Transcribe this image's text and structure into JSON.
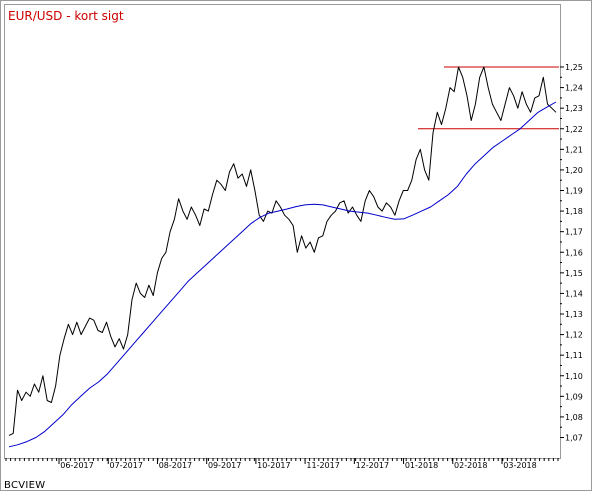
{
  "chart_data": {
    "type": "line",
    "title": "EUR/USD - kort sigt",
    "x_labels": [
      "06-2017",
      "07-2017",
      "08-2017",
      "09-2017",
      "10-2017",
      "11-2017",
      "12-2017",
      "01-2018",
      "02-2018",
      "03-2018"
    ],
    "y_ticks": [
      "1,07",
      "1,08",
      "1,09",
      "1,10",
      "1,11",
      "1,12",
      "1,13",
      "1,14",
      "1,15",
      "1,16",
      "1,17",
      "1,18",
      "1,19",
      "1,20",
      "1,21",
      "1,22",
      "1,23",
      "1,24",
      "1,25"
    ],
    "ylim": [
      1.064,
      1.255
    ],
    "grid": false,
    "colors": {
      "price": "#000000",
      "moving_average": "#0000cc",
      "levels": "#cc0000",
      "title": "#cc0000"
    },
    "series": [
      {
        "values": [
          1.071,
          1.072,
          1.093,
          1.088,
          1.092,
          1.09,
          1.096,
          1.092,
          1.1,
          1.088,
          1.087,
          1.095,
          1.11,
          1.118,
          1.125,
          1.12,
          1.126,
          1.12,
          1.124,
          1.128,
          1.127,
          1.122,
          1.121,
          1.126,
          1.119,
          1.114,
          1.118,
          1.113,
          1.12,
          1.137,
          1.145,
          1.14,
          1.138,
          1.144,
          1.139,
          1.15,
          1.157,
          1.16,
          1.17,
          1.176,
          1.186,
          1.18,
          1.176,
          1.182,
          1.178,
          1.173,
          1.181,
          1.18,
          1.188,
          1.195,
          1.193,
          1.19,
          1.199,
          1.203,
          1.196,
          1.198,
          1.192,
          1.2,
          1.19,
          1.178,
          1.175,
          1.18,
          1.179,
          1.185,
          1.182,
          1.178,
          1.176,
          1.173,
          1.16,
          1.168,
          1.162,
          1.165,
          1.16,
          1.167,
          1.168,
          1.175,
          1.178,
          1.18,
          1.184,
          1.185,
          1.179,
          1.182,
          1.178,
          1.175,
          1.185,
          1.19,
          1.187,
          1.182,
          1.18,
          1.184,
          1.182,
          1.178,
          1.185,
          1.19,
          1.19,
          1.195,
          1.205,
          1.21,
          1.2,
          1.195,
          1.218,
          1.228,
          1.222,
          1.23,
          1.24,
          1.238,
          1.25,
          1.245,
          1.236,
          1.224,
          1.232,
          1.245,
          1.25,
          1.24,
          1.232,
          1.228,
          1.224,
          1.232,
          1.24,
          1.236,
          1.23,
          1.238,
          1.232,
          1.228,
          1.235,
          1.236,
          1.245,
          1.232,
          1.23,
          1.228
        ]
      },
      {
        "values": [
          1.0655,
          1.0665,
          1.068,
          1.07,
          1.073,
          1.077,
          1.081,
          1.086,
          1.09,
          1.094,
          1.097,
          1.101,
          1.106,
          1.111,
          1.116,
          1.121,
          1.126,
          1.131,
          1.136,
          1.141,
          1.146,
          1.15,
          1.154,
          1.158,
          1.162,
          1.166,
          1.17,
          1.174,
          1.177,
          1.179,
          1.18,
          1.181,
          1.1822,
          1.183,
          1.1833,
          1.183,
          1.182,
          1.181,
          1.18,
          1.1795,
          1.179,
          1.178,
          1.177,
          1.176,
          1.1762,
          1.178,
          1.18,
          1.182,
          1.185,
          1.188,
          1.192,
          1.198,
          1.203,
          1.207,
          1.211,
          1.214,
          1.217,
          1.22,
          1.224,
          1.228,
          1.2305,
          1.233
        ]
      }
    ],
    "horizontal_levels": [
      1.25,
      1.22
    ]
  },
  "footer": {
    "source": "BCVIEW"
  }
}
